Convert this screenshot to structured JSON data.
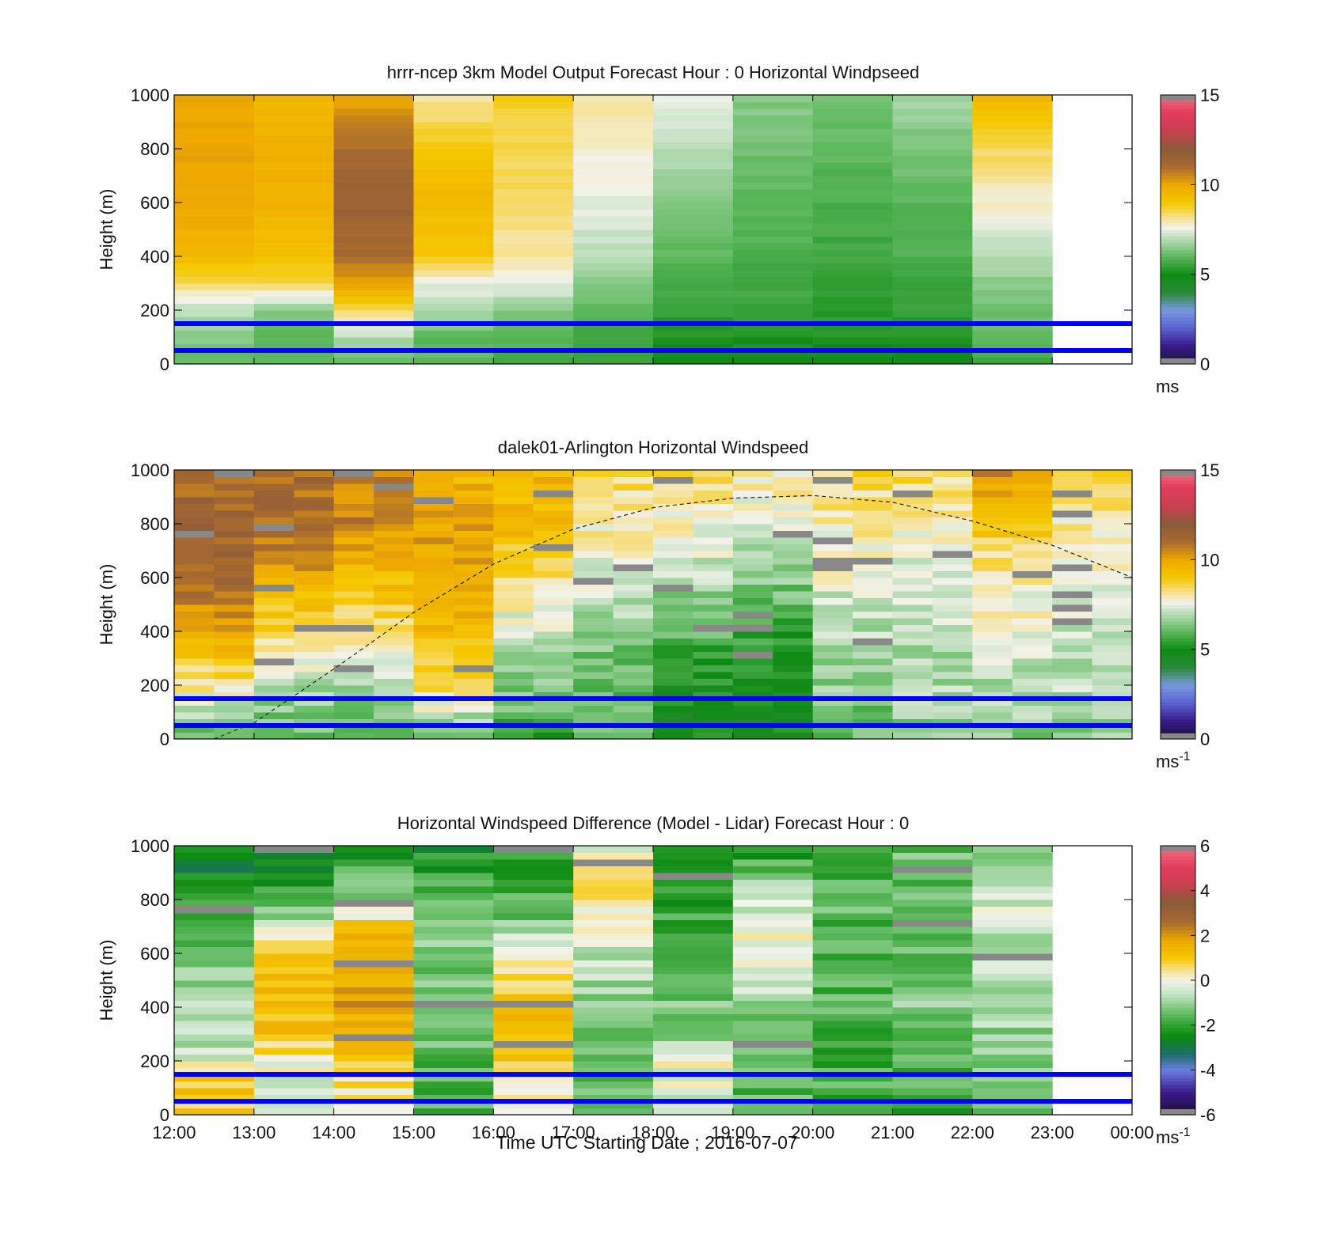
{
  "figure": {
    "xlabel": "Time UTC  Starting Date ; 2016-07-07"
  },
  "chart_data": [
    {
      "type": "heatmap",
      "title": "hrrr-ncep 3km Model Output   Forecast Hour : 0 Horizontal Windpseed",
      "ylabel": "Height (m)",
      "ylim": [
        0,
        1000
      ],
      "yticks": [
        0,
        200,
        400,
        600,
        800,
        1000
      ],
      "x_tick_labels": [
        "12:00",
        "13:00",
        "14:00",
        "15:00",
        "16:00",
        "17:00",
        "18:00",
        "19:00",
        "20:00",
        "21:00",
        "22:00",
        "23:00",
        "00:00"
      ],
      "colorbar": {
        "min": 0,
        "max": 15,
        "ticks": [
          0,
          5,
          10,
          15
        ],
        "unit": "ms",
        "unit_sup": "",
        "scale": "windspeed"
      },
      "hours": 11,
      "blue_lines_m": [
        150,
        50
      ],
      "profiles_approx": [
        [
          [
            0,
            6
          ],
          [
            100,
            6.5
          ],
          [
            200,
            7
          ],
          [
            300,
            8.5
          ],
          [
            400,
            9.5
          ],
          [
            600,
            10
          ],
          [
            800,
            10
          ],
          [
            1000,
            10
          ]
        ],
        [
          [
            0,
            6
          ],
          [
            100,
            6
          ],
          [
            200,
            6.5
          ],
          [
            300,
            8.5
          ],
          [
            400,
            9.2
          ],
          [
            600,
            9.6
          ],
          [
            800,
            9.8
          ],
          [
            1000,
            9.5
          ]
        ],
        [
          [
            0,
            6
          ],
          [
            100,
            7
          ],
          [
            200,
            8.5
          ],
          [
            300,
            10
          ],
          [
            400,
            11
          ],
          [
            600,
            11.5
          ],
          [
            800,
            11
          ],
          [
            1000,
            10
          ]
        ],
        [
          [
            0,
            6
          ],
          [
            100,
            6
          ],
          [
            200,
            7
          ],
          [
            300,
            7.5
          ],
          [
            400,
            9
          ],
          [
            600,
            9.5
          ],
          [
            800,
            9
          ],
          [
            1000,
            8
          ]
        ],
        [
          [
            0,
            5.5
          ],
          [
            100,
            6
          ],
          [
            200,
            6.5
          ],
          [
            300,
            7.5
          ],
          [
            400,
            8
          ],
          [
            600,
            8.5
          ],
          [
            800,
            8.5
          ],
          [
            1000,
            8.8
          ]
        ],
        [
          [
            0,
            5.5
          ],
          [
            100,
            5.5
          ],
          [
            200,
            6
          ],
          [
            300,
            6.5
          ],
          [
            400,
            7
          ],
          [
            600,
            7.5
          ],
          [
            800,
            7.8
          ],
          [
            1000,
            8
          ]
        ],
        [
          [
            0,
            5
          ],
          [
            100,
            5.2
          ],
          [
            200,
            5.5
          ],
          [
            300,
            5.8
          ],
          [
            400,
            6
          ],
          [
            600,
            6.5
          ],
          [
            800,
            7
          ],
          [
            1000,
            7.5
          ]
        ],
        [
          [
            0,
            5
          ],
          [
            100,
            5.2
          ],
          [
            200,
            5.5
          ],
          [
            300,
            5.6
          ],
          [
            400,
            5.8
          ],
          [
            600,
            6
          ],
          [
            800,
            6.2
          ],
          [
            1000,
            6.5
          ]
        ],
        [
          [
            0,
            5
          ],
          [
            100,
            5.2
          ],
          [
            200,
            5.4
          ],
          [
            300,
            5.5
          ],
          [
            400,
            5.6
          ],
          [
            600,
            5.8
          ],
          [
            800,
            6
          ],
          [
            1000,
            6.3
          ]
        ],
        [
          [
            0,
            5
          ],
          [
            100,
            5.2
          ],
          [
            200,
            5.5
          ],
          [
            300,
            5.6
          ],
          [
            400,
            5.8
          ],
          [
            600,
            6
          ],
          [
            800,
            6.3
          ],
          [
            1000,
            6.8
          ]
        ],
        [
          [
            0,
            5.5
          ],
          [
            100,
            6
          ],
          [
            200,
            6.2
          ],
          [
            300,
            6.5
          ],
          [
            400,
            7
          ],
          [
            600,
            7.8
          ],
          [
            800,
            8.5
          ],
          [
            1000,
            9.5
          ]
        ]
      ]
    },
    {
      "type": "heatmap",
      "title": "dalek01-Arlington  Horizontal Windspeed",
      "ylabel": "Height (m)",
      "ylim": [
        0,
        1000
      ],
      "yticks": [
        0,
        200,
        400,
        600,
        800,
        1000
      ],
      "x_tick_labels": [],
      "colorbar": {
        "min": 0,
        "max": 15,
        "ticks": [
          0,
          5,
          10,
          15
        ],
        "unit": "ms",
        "unit_sup": "-1",
        "scale": "windspeed"
      },
      "hours": 12,
      "blue_lines_m": [
        150,
        50
      ],
      "dashed_curve": {
        "x_hours": [
          0.5,
          1,
          2,
          3,
          4,
          5,
          6,
          7,
          8,
          9,
          10,
          11,
          12
        ],
        "y_m": [
          0,
          60,
          260,
          470,
          650,
          780,
          860,
          895,
          905,
          880,
          810,
          720,
          600
        ]
      },
      "profiles_approx": [
        [
          [
            0,
            6
          ],
          [
            200,
            8
          ],
          [
            400,
            10
          ],
          [
            600,
            11
          ],
          [
            800,
            11.5
          ],
          [
            1000,
            11
          ]
        ],
        [
          [
            0,
            6
          ],
          [
            200,
            7
          ],
          [
            400,
            8.5
          ],
          [
            600,
            10
          ],
          [
            800,
            11
          ],
          [
            1000,
            11
          ]
        ],
        [
          [
            0,
            5.5
          ],
          [
            200,
            7
          ],
          [
            400,
            8.2
          ],
          [
            600,
            9.5
          ],
          [
            800,
            10.5
          ],
          [
            1000,
            10.5
          ]
        ],
        [
          [
            0,
            6
          ],
          [
            200,
            8.5
          ],
          [
            400,
            9.5
          ],
          [
            600,
            10
          ],
          [
            800,
            10
          ],
          [
            1000,
            9.5
          ]
        ],
        [
          [
            0,
            5.5
          ],
          [
            200,
            6.5
          ],
          [
            400,
            7.2
          ],
          [
            600,
            8.5
          ],
          [
            800,
            9.5
          ],
          [
            1000,
            9.5
          ]
        ],
        [
          [
            0,
            6
          ],
          [
            200,
            6
          ],
          [
            400,
            6.5
          ],
          [
            600,
            7.5
          ],
          [
            800,
            8
          ],
          [
            1000,
            8.5
          ]
        ],
        [
          [
            0,
            5
          ],
          [
            200,
            5
          ],
          [
            400,
            6
          ],
          [
            600,
            7
          ],
          [
            800,
            7.8
          ],
          [
            1000,
            8.5
          ]
        ],
        [
          [
            0,
            4.8
          ],
          [
            200,
            5
          ],
          [
            400,
            5.5
          ],
          [
            600,
            6.5
          ],
          [
            800,
            7.5
          ],
          [
            1000,
            8
          ]
        ],
        [
          [
            0,
            6
          ],
          [
            200,
            6.5
          ],
          [
            400,
            7
          ],
          [
            600,
            7.5
          ],
          [
            800,
            8
          ],
          [
            1000,
            8.5
          ]
        ],
        [
          [
            0,
            6.5
          ],
          [
            200,
            6.8
          ],
          [
            400,
            7
          ],
          [
            600,
            7.5
          ],
          [
            800,
            7.8
          ],
          [
            1000,
            8.5
          ]
        ],
        [
          [
            0,
            6.5
          ],
          [
            200,
            7
          ],
          [
            400,
            7.5
          ],
          [
            600,
            8
          ],
          [
            800,
            9
          ],
          [
            1000,
            10.5
          ]
        ],
        [
          [
            0,
            6.5
          ],
          [
            200,
            7
          ],
          [
            400,
            7.2
          ],
          [
            600,
            7.5
          ],
          [
            800,
            8
          ],
          [
            1000,
            8.5
          ]
        ]
      ]
    },
    {
      "type": "heatmap",
      "title": "Horizontal Windspeed Difference (Model - Lidar) Forecast Hour : 0",
      "ylabel": "Height (m)",
      "ylim": [
        0,
        1000
      ],
      "yticks": [
        0,
        200,
        400,
        600,
        800,
        1000
      ],
      "x_tick_labels": [
        "12:00",
        "13:00",
        "14:00",
        "15:00",
        "16:00",
        "17:00",
        "18:00",
        "19:00",
        "20:00",
        "21:00",
        "22:00",
        "23:00",
        "00:00"
      ],
      "colorbar": {
        "min": -6,
        "max": 6,
        "ticks": [
          -6,
          -4,
          -2,
          0,
          2,
          4,
          6
        ],
        "unit": "ms",
        "unit_sup": "-1",
        "scale": "difference"
      },
      "hours": 11,
      "blue_lines_m": [
        150,
        50
      ],
      "profiles_approx": [
        [
          [
            0,
            1
          ],
          [
            150,
            1
          ],
          [
            200,
            -0.5
          ],
          [
            400,
            -0.5
          ],
          [
            600,
            -1.5
          ],
          [
            800,
            -2
          ],
          [
            900,
            -2.5
          ],
          [
            1000,
            -2.5
          ]
        ],
        [
          [
            0,
            -0.5
          ],
          [
            200,
            0
          ],
          [
            300,
            1
          ],
          [
            500,
            1.2
          ],
          [
            650,
            0.5
          ],
          [
            700,
            -0.5
          ],
          [
            800,
            -1.5
          ],
          [
            900,
            -2.3
          ],
          [
            1000,
            -2.5
          ]
        ],
        [
          [
            0,
            0
          ],
          [
            200,
            1
          ],
          [
            400,
            1.8
          ],
          [
            600,
            2
          ],
          [
            700,
            1
          ],
          [
            800,
            -1
          ],
          [
            900,
            -1.8
          ],
          [
            1000,
            -2.5
          ]
        ],
        [
          [
            0,
            -1.8
          ],
          [
            200,
            -1.5
          ],
          [
            400,
            -1.2
          ],
          [
            600,
            -1.2
          ],
          [
            800,
            -1.5
          ],
          [
            900,
            -2
          ],
          [
            1000,
            -2.5
          ]
        ],
        [
          [
            0,
            -0.5
          ],
          [
            200,
            1.2
          ],
          [
            400,
            1.3
          ],
          [
            600,
            0.5
          ],
          [
            700,
            -1
          ],
          [
            800,
            -1.8
          ],
          [
            1000,
            -2.2
          ]
        ],
        [
          [
            0,
            -1.8
          ],
          [
            200,
            -1.5
          ],
          [
            400,
            -1.2
          ],
          [
            600,
            -0.5
          ],
          [
            700,
            0.2
          ],
          [
            800,
            0.6
          ],
          [
            900,
            0.5
          ],
          [
            1000,
            -0.5
          ]
        ],
        [
          [
            0,
            -0.5
          ],
          [
            200,
            0
          ],
          [
            300,
            -1
          ],
          [
            400,
            -1.2
          ],
          [
            600,
            -1.5
          ],
          [
            800,
            -2.2
          ],
          [
            1000,
            -2.5
          ]
        ],
        [
          [
            0,
            -1.5
          ],
          [
            200,
            -1.5
          ],
          [
            400,
            -1
          ],
          [
            600,
            0.2
          ],
          [
            800,
            -0.5
          ],
          [
            900,
            -1.5
          ],
          [
            1000,
            -2.3
          ]
        ],
        [
          [
            0,
            -1.8
          ],
          [
            200,
            -1.8
          ],
          [
            400,
            -1.7
          ],
          [
            600,
            -1.6
          ],
          [
            800,
            -1.6
          ],
          [
            1000,
            -1.8
          ]
        ],
        [
          [
            0,
            -1.8
          ],
          [
            200,
            -1.6
          ],
          [
            400,
            -1.2
          ],
          [
            600,
            -1.3
          ],
          [
            800,
            -1.4
          ],
          [
            1000,
            -1.5
          ]
        ],
        [
          [
            0,
            -1.8
          ],
          [
            200,
            -1.2
          ],
          [
            400,
            -0.8
          ],
          [
            600,
            -0.6
          ],
          [
            800,
            -0.3
          ],
          [
            1000,
            -1.5
          ]
        ]
      ]
    }
  ]
}
